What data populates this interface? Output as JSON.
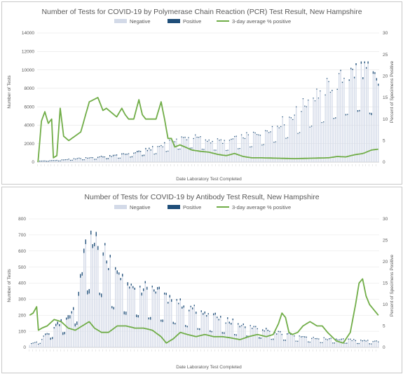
{
  "colors": {
    "negative": "#d3dae8",
    "positive": "#1f4e79",
    "line": "#70ad47",
    "grid": "#e3e3e3"
  },
  "chart_data": [
    {
      "type": "bar",
      "title": "Number of Tests for COVID-19 by Polymerase Chain Reaction (PCR) Test Result, New Hampshire",
      "xlabel": "Date Laboratory Test Completed",
      "ylabel": "Number of Tests",
      "y2label": "Percent of Specimens Positive",
      "ylim": [
        0,
        14000
      ],
      "y2lim": [
        0,
        30
      ],
      "yticks": [
        "0",
        "2000",
        "4000",
        "6000",
        "8000",
        "10000",
        "12000",
        "14000"
      ],
      "y2ticks": [
        "0",
        "5",
        "10",
        "15",
        "20",
        "25",
        "30"
      ],
      "grid": true,
      "legend": "top",
      "bar_count": 200,
      "legend_labels": [
        "Negative",
        "Positive",
        "3-day average % positive"
      ],
      "series_control": {
        "negative": {
          "points": [
            [
              0,
              50
            ],
            [
              12,
              150
            ],
            [
              24,
              350
            ],
            [
              36,
              500
            ],
            [
              48,
              700
            ],
            [
              60,
              1100
            ],
            [
              70,
              1600
            ],
            [
              80,
              2400
            ],
            [
              90,
              2700
            ],
            [
              100,
              2300
            ],
            [
              110,
              2200
            ],
            [
              120,
              2700
            ],
            [
              130,
              3200
            ],
            [
              140,
              4000
            ],
            [
              150,
              5200
            ],
            [
              160,
              7000
            ],
            [
              170,
              8200
            ],
            [
              180,
              9200
            ],
            [
              190,
              10200
            ],
            [
              199,
              8500
            ]
          ],
          "spike_every": 7,
          "spike_amp": 0.45
        },
        "positive": {
          "points": [
            [
              0,
              0
            ],
            [
              20,
              40
            ],
            [
              40,
              120
            ],
            [
              60,
              130
            ],
            [
              80,
              80
            ],
            [
              100,
              40
            ],
            [
              140,
              30
            ],
            [
              170,
              80
            ],
            [
              199,
              250
            ]
          ]
        },
        "pct_line": {
          "points": [
            [
              0,
              0
            ],
            [
              2,
              9.5
            ],
            [
              4,
              11.7
            ],
            [
              6,
              9
            ],
            [
              8,
              10
            ],
            [
              9,
              1
            ],
            [
              11,
              1.5
            ],
            [
              13,
              12.5
            ],
            [
              15,
              6
            ],
            [
              18,
              5
            ],
            [
              25,
              7
            ],
            [
              30,
              14
            ],
            [
              35,
              15
            ],
            [
              38,
              12
            ],
            [
              40,
              12.5
            ],
            [
              43,
              11.5
            ],
            [
              46,
              10.5
            ],
            [
              49,
              12.5
            ],
            [
              51,
              11
            ],
            [
              53,
              10
            ],
            [
              56,
              10
            ],
            [
              59,
              14.5
            ],
            [
              61,
              11
            ],
            [
              63,
              10
            ],
            [
              66,
              10
            ],
            [
              69,
              10
            ],
            [
              72,
              14
            ],
            [
              74,
              10
            ],
            [
              76,
              5.5
            ],
            [
              78,
              5.5
            ],
            [
              80,
              3.5
            ],
            [
              83,
              4
            ],
            [
              86,
              3.5
            ],
            [
              90,
              2.8
            ],
            [
              95,
              2.5
            ],
            [
              100,
              2.3
            ],
            [
              105,
              1.8
            ],
            [
              110,
              1.5
            ],
            [
              115,
              2
            ],
            [
              120,
              1.3
            ],
            [
              125,
              1
            ],
            [
              130,
              1
            ],
            [
              140,
              0.9
            ],
            [
              150,
              0.8
            ],
            [
              160,
              0.9
            ],
            [
              170,
              1
            ],
            [
              175,
              1.3
            ],
            [
              180,
              1.2
            ],
            [
              185,
              1.7
            ],
            [
              190,
              2
            ],
            [
              195,
              2.8
            ],
            [
              199,
              3
            ]
          ]
        }
      }
    },
    {
      "type": "bar",
      "title": "Number of Tests for COVID-19 by Antibody Test Result, New Hampshire",
      "xlabel": "Date Laboratory Test Completed",
      "ylabel": "Number of Tests",
      "y2label": "Percent of Specimens Positive",
      "ylim": [
        0,
        800
      ],
      "y2lim": [
        0,
        30
      ],
      "yticks": [
        "0",
        "100",
        "200",
        "300",
        "400",
        "500",
        "600",
        "700",
        "800"
      ],
      "y2ticks": [
        "0",
        "5",
        "10",
        "15",
        "20",
        "25",
        "30"
      ],
      "grid": true,
      "legend": "top",
      "bar_count": 200,
      "legend_labels": [
        "Negative",
        "Positive",
        "3-day average % positive"
      ],
      "series_control": {
        "negative": {
          "points": [
            [
              0,
              15
            ],
            [
              5,
              35
            ],
            [
              15,
              120
            ],
            [
              22,
              180
            ],
            [
              28,
              300
            ],
            [
              32,
              650
            ],
            [
              35,
              680
            ],
            [
              38,
              700
            ],
            [
              42,
              600
            ],
            [
              46,
              500
            ],
            [
              52,
              420
            ],
            [
              60,
              380
            ],
            [
              70,
              340
            ],
            [
              80,
              300
            ],
            [
              90,
              250
            ],
            [
              100,
              200
            ],
            [
              110,
              170
            ],
            [
              120,
              140
            ],
            [
              130,
              110
            ],
            [
              140,
              90
            ],
            [
              150,
              75
            ],
            [
              160,
              60
            ],
            [
              170,
              50
            ],
            [
              180,
              45
            ],
            [
              190,
              40
            ],
            [
              199,
              35
            ]
          ],
          "spike_every": 7,
          "spike_amp": 0.5
        },
        "positive": {
          "points": [
            [
              0,
              0
            ],
            [
              30,
              25
            ],
            [
              40,
              20
            ],
            [
              60,
              15
            ],
            [
              100,
              10
            ],
            [
              150,
              6
            ],
            [
              199,
              5
            ]
          ]
        },
        "pct_line": {
          "points": [
            [
              0,
              7.5
            ],
            [
              2,
              8
            ],
            [
              4,
              9.5
            ],
            [
              5,
              4
            ],
            [
              7,
              4.5
            ],
            [
              10,
              5
            ],
            [
              14,
              6.5
            ],
            [
              18,
              6
            ],
            [
              22,
              4.5
            ],
            [
              26,
              4
            ],
            [
              30,
              5
            ],
            [
              34,
              6
            ],
            [
              37,
              4.5
            ],
            [
              41,
              3.5
            ],
            [
              45,
              3.5
            ],
            [
              50,
              5
            ],
            [
              55,
              5
            ],
            [
              60,
              4.5
            ],
            [
              65,
              4.5
            ],
            [
              70,
              4
            ],
            [
              75,
              2.5
            ],
            [
              78,
              1
            ],
            [
              82,
              2
            ],
            [
              86,
              3.5
            ],
            [
              90,
              3
            ],
            [
              95,
              2.5
            ],
            [
              100,
              3
            ],
            [
              105,
              2.5
            ],
            [
              110,
              2.5
            ],
            [
              115,
              2.2
            ],
            [
              120,
              1.8
            ],
            [
              125,
              2.5
            ],
            [
              130,
              3
            ],
            [
              135,
              2.5
            ],
            [
              139,
              3
            ],
            [
              142,
              5.5
            ],
            [
              144,
              8
            ],
            [
              146,
              7
            ],
            [
              148,
              3.5
            ],
            [
              150,
              3
            ],
            [
              153,
              3.5
            ],
            [
              156,
              5
            ],
            [
              160,
              6
            ],
            [
              164,
              5
            ],
            [
              167,
              5
            ],
            [
              170,
              3.5
            ],
            [
              175,
              1.5
            ],
            [
              179,
              1
            ],
            [
              183,
              3.5
            ],
            [
              186,
              10
            ],
            [
              188,
              15
            ],
            [
              190,
              16
            ],
            [
              192,
              12
            ],
            [
              194,
              10
            ],
            [
              196,
              9
            ],
            [
              199,
              7.5
            ]
          ]
        }
      }
    }
  ]
}
